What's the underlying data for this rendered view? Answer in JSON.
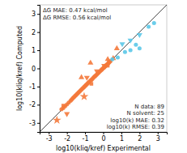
{
  "chart_data": {
    "type": "scatter",
    "x_label": "log10(kliq/kref) Experimental",
    "y_label": "log10(kliq/kref) Computed",
    "xlim": [
      -3.5,
      3.5
    ],
    "ylim": [
      -3.5,
      3.5
    ],
    "xticks": [
      -3,
      -2,
      -1,
      0,
      1,
      2,
      3
    ],
    "yticks": [
      -3,
      -2,
      -1,
      0,
      1,
      2,
      3
    ],
    "annotations": [
      "ΔG MAE: 0.47 kcal/mol\nΔG RMSE: 0.56 kcal/mol",
      "N data: 89\nN solvent: 25\nlog10(k) MAE: 0.32\nlog10(k) RMSE: 0.39"
    ],
    "series": [
      {
        "color": "#F4793B",
        "marker": "circle",
        "x": [
          -0.55,
          -0.5,
          -0.45,
          -0.4,
          -0.35,
          -0.3,
          -0.25,
          -0.2,
          -0.15,
          -0.1,
          -0.08,
          -0.05,
          0.0,
          0.03,
          0.05,
          0.08,
          0.1,
          0.13,
          0.15,
          0.18,
          0.2,
          0.25,
          0.3,
          0.35,
          0.4,
          -0.6,
          -0.65,
          -0.7,
          -0.75,
          -0.8,
          -0.85,
          -0.9,
          -0.95,
          -1.0,
          -1.05,
          -1.1,
          -1.15,
          -1.2,
          -1.25,
          -1.3,
          -1.35,
          -1.4,
          -1.45,
          -1.5,
          -1.55,
          -1.6,
          -1.65,
          -1.7,
          -1.75,
          -1.8,
          -1.9,
          -2.0,
          -2.1,
          -2.2,
          -2.3
        ],
        "values": [
          -0.52,
          -0.47,
          -0.43,
          -0.38,
          -0.33,
          -0.28,
          -0.23,
          -0.18,
          -0.13,
          -0.09,
          -0.06,
          -0.03,
          0.01,
          0.04,
          0.06,
          0.09,
          0.11,
          0.14,
          0.16,
          0.19,
          0.21,
          0.26,
          0.31,
          0.36,
          0.4,
          -0.58,
          -0.63,
          -0.67,
          -0.72,
          -0.77,
          -0.82,
          -0.87,
          -0.92,
          -0.97,
          -1.02,
          -1.07,
          -1.12,
          -1.17,
          -1.22,
          -1.27,
          -1.32,
          -1.37,
          -1.42,
          -1.47,
          -1.52,
          -1.57,
          -1.62,
          -1.67,
          -1.73,
          -1.78,
          -1.88,
          -1.98,
          -2.08,
          -2.18,
          -2.25
        ]
      },
      {
        "color": "#F4793B",
        "marker": "triangle-up",
        "x": [
          -1.2,
          -0.7,
          0.25,
          0.55,
          0.75
        ],
        "values": [
          -0.5,
          0.3,
          0.5,
          0.55,
          1.1
        ]
      },
      {
        "color": "#F4793B",
        "marker": "triangle-down",
        "x": [
          -2.0,
          -0.9,
          -0.35,
          0.05,
          0.35
        ],
        "values": [
          -2.5,
          -0.5,
          -0.15,
          0.15,
          0.35
        ]
      },
      {
        "color": "#F4793B",
        "marker": "square",
        "x": [
          -2.2,
          -0.65,
          0.25
        ],
        "values": [
          -2.05,
          -0.85,
          0.15
        ]
      },
      {
        "color": "#F4793B",
        "marker": "star",
        "x": [
          -2.55,
          -1.05
        ],
        "values": [
          -2.85,
          -1.55
        ]
      },
      {
        "color": "#5BC8E8",
        "marker": "circle",
        "x": [
          0.5,
          0.8,
          1.2,
          1.5,
          1.8,
          2.0,
          2.5,
          2.8
        ],
        "values": [
          0.5,
          0.6,
          0.9,
          1.0,
          1.3,
          1.1,
          2.3,
          2.5
        ]
      },
      {
        "color": "#5BC8E8",
        "marker": "triangle-down",
        "x": [
          1.05,
          1.5,
          2.0
        ],
        "values": [
          1.35,
          1.55,
          1.85
        ]
      }
    ]
  }
}
